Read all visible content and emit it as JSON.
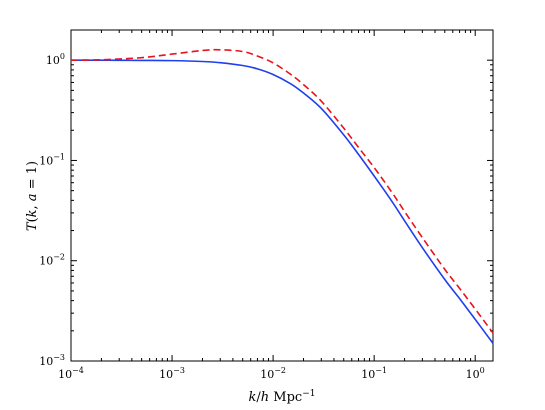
{
  "chart_data": {
    "type": "line",
    "title": "",
    "xlabel": {
      "var_k": "k",
      "slash": "/",
      "var_h": "h",
      "unit": "Mpc",
      "exponent": "−1"
    },
    "ylabel": {
      "func": "T",
      "open": "(",
      "var_k": "k",
      "comma": ", ",
      "var_a": "a",
      "eq": " = 1",
      "close": ")"
    },
    "x_scale": "log",
    "y_scale": "log",
    "xlim": [
      0.0001,
      1.5
    ],
    "ylim": [
      0.001,
      2
    ],
    "grid": false,
    "legend": "none",
    "x_ticks": [
      {
        "base": "10",
        "exp": "−4",
        "value": 0.0001
      },
      {
        "base": "10",
        "exp": "−3",
        "value": 0.001
      },
      {
        "base": "10",
        "exp": "−2",
        "value": 0.01
      },
      {
        "base": "10",
        "exp": "−1",
        "value": 0.1
      },
      {
        "base": "10",
        "exp": "0",
        "value": 1
      }
    ],
    "y_ticks": [
      {
        "base": "10",
        "exp": "−3",
        "value": 0.001
      },
      {
        "base": "10",
        "exp": "−2",
        "value": 0.01
      },
      {
        "base": "10",
        "exp": "−1",
        "value": 0.1
      },
      {
        "base": "10",
        "exp": "0",
        "value": 1
      }
    ],
    "series": [
      {
        "color": "#1f3ff0",
        "style": "solid",
        "x": [
          0.0001,
          0.0002,
          0.0005,
          0.001,
          0.002,
          0.003,
          0.005,
          0.007,
          0.01,
          0.015,
          0.02,
          0.03,
          0.05,
          0.07,
          0.1,
          0.15,
          0.2,
          0.3,
          0.5,
          0.7,
          1.0,
          1.5
        ],
        "y": [
          1.0,
          1.0,
          0.995,
          0.99,
          0.97,
          0.945,
          0.885,
          0.82,
          0.72,
          0.58,
          0.47,
          0.33,
          0.18,
          0.115,
          0.07,
          0.039,
          0.025,
          0.0135,
          0.0065,
          0.0042,
          0.0026,
          0.0015
        ]
      },
      {
        "color": "#e8141c",
        "style": "dashed",
        "x": [
          0.0001,
          0.0002,
          0.0005,
          0.001,
          0.002,
          0.003,
          0.005,
          0.007,
          0.01,
          0.015,
          0.02,
          0.03,
          0.05,
          0.07,
          0.1,
          0.15,
          0.2,
          0.3,
          0.5,
          0.7,
          1.0,
          1.5
        ],
        "y": [
          1.0,
          1.01,
          1.06,
          1.15,
          1.25,
          1.27,
          1.22,
          1.1,
          0.94,
          0.72,
          0.57,
          0.39,
          0.21,
          0.135,
          0.085,
          0.048,
          0.031,
          0.017,
          0.0082,
          0.0053,
          0.0033,
          0.0019
        ]
      }
    ]
  }
}
